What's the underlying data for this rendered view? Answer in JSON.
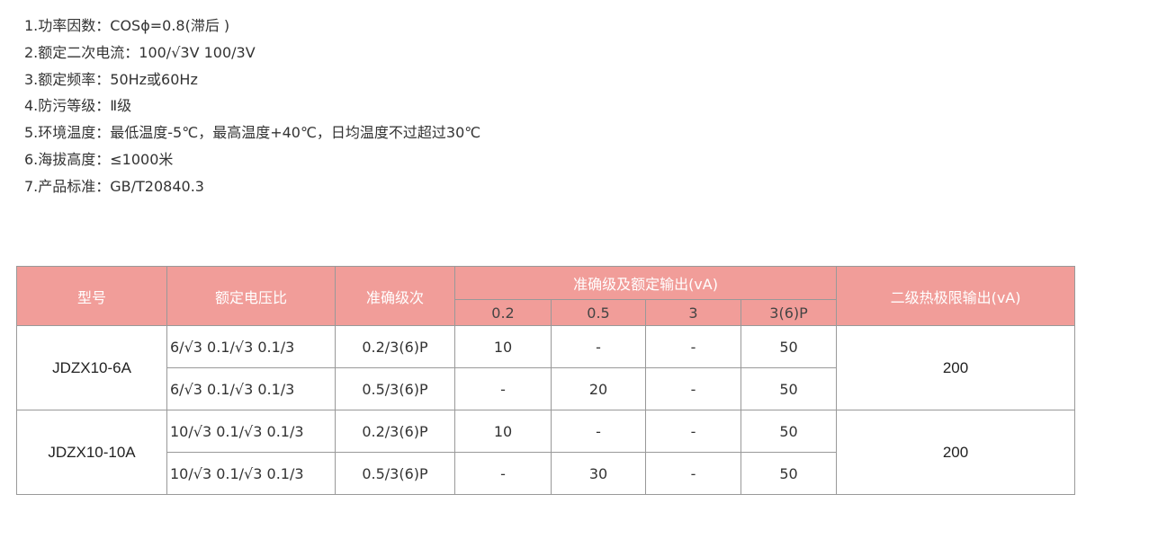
{
  "specs": [
    "1.功率因数：COSϕ=0.8(滞后 )",
    "2.额定二次电流：100/√3V  100/3V",
    "3.额定频率：50Hz或60Hz",
    "4.防污等级：Ⅱ级",
    "5.环境温度：最低温度-5℃，最高温度+40℃，日均温度不过超过30℃",
    "6.海拔高度：≤1000米",
    "7.产品标准：GB/T20840.3"
  ],
  "table": {
    "headers": {
      "model": "型号",
      "ratio": "额定电压比",
      "accuracy": "准确级次",
      "rated_output": "准确级及额定输出(vA)",
      "output_classes": [
        "0.2",
        "0.5",
        "3",
        "3(6)P"
      ],
      "thermal_limit": "二级热极限输出(vA)"
    },
    "groups": [
      {
        "model": "JDZX10-6A",
        "thermal_limit": "200",
        "rows": [
          {
            "ratio": "6/√3 0.1/√3 0.1/3",
            "accuracy": "0.2/3(6)P",
            "outputs": [
              "10",
              "-",
              "-",
              "50"
            ]
          },
          {
            "ratio": "6/√3 0.1/√3 0.1/3",
            "accuracy": "0.5/3(6)P",
            "outputs": [
              "-",
              "20",
              "-",
              "50"
            ]
          }
        ]
      },
      {
        "model": "JDZX10-10A",
        "thermal_limit": "200",
        "rows": [
          {
            "ratio": "10/√3 0.1/√3 0.1/3",
            "accuracy": "0.2/3(6)P",
            "outputs": [
              "10",
              "-",
              "-",
              "50"
            ]
          },
          {
            "ratio": "10/√3 0.1/√3 0.1/3",
            "accuracy": "0.5/3(6)P",
            "outputs": [
              "-",
              "30",
              "-",
              "50"
            ]
          }
        ]
      }
    ]
  },
  "colors": {
    "header_bg": "#f19d99",
    "header_text": "#ffffff"
  }
}
